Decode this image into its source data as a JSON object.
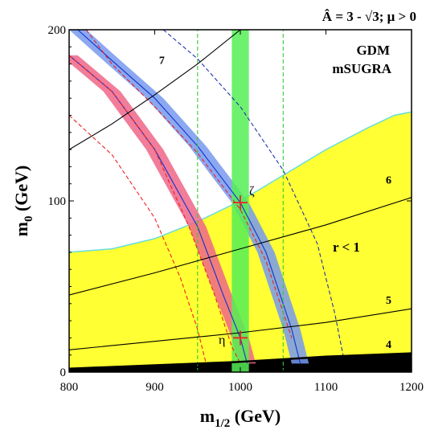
{
  "chart_data": {
    "type": "line",
    "title": "Â = 3 - √3; μ > 0",
    "xlabel": "m",
    "xlabel_sub": "1/2",
    "xlabel_unit": " (GeV)",
    "ylabel": "m",
    "ylabel_sub": "0",
    "ylabel_unit": " (GeV)",
    "xlim": [
      800,
      1200
    ],
    "ylim": [
      0,
      200
    ],
    "xticks": [
      800,
      900,
      1000,
      1100,
      1200
    ],
    "yticks": [
      0,
      100,
      200
    ],
    "annotations": {
      "model1": "GDM",
      "model2": "mSUGRA",
      "region_label": "r < 1",
      "point_zeta": "ζ",
      "point_eta": "η"
    },
    "regions": {
      "excluded_black": {
        "color": "#000000",
        "upper": {
          "x": [
            800,
            1000,
            1100,
            1200
          ],
          "y": [
            2,
            6,
            9,
            11
          ]
        }
      },
      "yellow_r_lt_1": {
        "color": "#ffff33",
        "edge_color": "#66dddd",
        "upper": {
          "x": [
            800,
            850,
            900,
            950,
            1000,
            1050,
            1100,
            1150,
            1180,
            1200
          ],
          "y": [
            70,
            72,
            78,
            88,
            100,
            115,
            130,
            143,
            150,
            152
          ]
        }
      }
    },
    "bands": [
      {
        "name": "pink-band",
        "color": "#ee6688",
        "halfwidth_x": 10,
        "x": [
          800,
          850,
          900,
          950,
          980,
          1000,
          1008
        ],
        "y": [
          185,
          164,
          130,
          85,
          45,
          20,
          5
        ]
      },
      {
        "name": "blue-band",
        "color": "#7799ee",
        "halfwidth_x": 10,
        "x": [
          810,
          850,
          900,
          950,
          1000,
          1030,
          1060,
          1070
        ],
        "y": [
          200,
          182,
          160,
          132,
          99,
          70,
          25,
          5
        ]
      },
      {
        "name": "green-band",
        "color": "#55ee55",
        "x_range": [
          990,
          1010
        ],
        "y_range": [
          0,
          200
        ]
      }
    ],
    "series": [
      {
        "name": "pink-center-line",
        "color": "#1133cc",
        "style": "solid",
        "x": [
          800,
          850,
          900,
          950,
          980,
          1000,
          1008
        ],
        "y": [
          185,
          164,
          130,
          85,
          45,
          20,
          5
        ]
      },
      {
        "name": "blue-center-line",
        "color": "#1133cc",
        "style": "solid",
        "x": [
          810,
          850,
          900,
          950,
          1000,
          1030,
          1060,
          1070
        ],
        "y": [
          200,
          182,
          160,
          132,
          99,
          70,
          25,
          5
        ]
      },
      {
        "name": "pink-inner-dashed",
        "color": "#ee2222",
        "style": "dashed",
        "x": [
          800,
          850,
          900,
          940,
          970,
          990,
          1000
        ],
        "y": [
          185,
          164,
          130,
          85,
          45,
          15,
          5
        ]
      },
      {
        "name": "blue-inner-dashed",
        "color": "#ee2222",
        "style": "dashed",
        "x": [
          820,
          850,
          900,
          950,
          1000,
          1030,
          1060
        ],
        "y": [
          200,
          180,
          155,
          128,
          95,
          65,
          20
        ]
      },
      {
        "name": "red-outer-dashed",
        "color": "#ee2222",
        "style": "dashed",
        "x": [
          800,
          850,
          900,
          930,
          950,
          960
        ],
        "y": [
          150,
          127,
          90,
          55,
          25,
          5
        ]
      },
      {
        "name": "blue-outer-dashed",
        "color": "#2233aa",
        "style": "dashed",
        "x": [
          910,
          950,
          1000,
          1050,
          1090,
          1110,
          1120
        ],
        "y": [
          200,
          183,
          155,
          118,
          75,
          35,
          10
        ]
      },
      {
        "name": "green-dashed-left",
        "color": "#33cc33",
        "style": "dashed",
        "x": [
          950,
          950
        ],
        "y": [
          0,
          200
        ]
      },
      {
        "name": "green-dashed-right",
        "color": "#33cc33",
        "style": "dashed",
        "x": [
          1050,
          1050
        ],
        "y": [
          0,
          200
        ]
      },
      {
        "name": "contour-7",
        "color": "#000000",
        "style": "solid",
        "label": "7",
        "x": [
          800,
          850,
          900,
          950,
          1000
        ],
        "y": [
          130,
          145,
          162,
          180,
          200
        ]
      },
      {
        "name": "contour-6",
        "color": "#000000",
        "style": "solid",
        "label": "6",
        "x": [
          800,
          900,
          1000,
          1100,
          1200
        ],
        "y": [
          45,
          58,
          72,
          86,
          102
        ]
      },
      {
        "name": "contour-5",
        "color": "#000000",
        "style": "solid",
        "label": "5",
        "x": [
          800,
          900,
          1000,
          1100,
          1200
        ],
        "y": [
          13,
          18,
          23,
          29,
          37
        ]
      },
      {
        "name": "contour-4",
        "color": "#000000",
        "style": "bold",
        "label": "4",
        "x": [
          800,
          1000,
          1100,
          1200
        ],
        "y": [
          2,
          6,
          9,
          11
        ]
      }
    ],
    "points": [
      {
        "name": "zeta",
        "x": 1000,
        "y": 99,
        "color": "#ee2222"
      },
      {
        "name": "eta",
        "x": 1000,
        "y": 20,
        "color": "#ee2222"
      }
    ],
    "grid": false
  }
}
